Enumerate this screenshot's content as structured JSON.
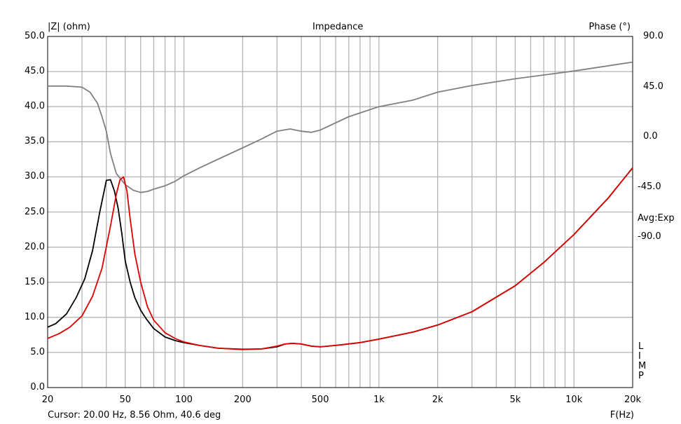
{
  "chart_data": {
    "type": "line",
    "title": "Impedance",
    "ylabel": "|Z| (ohm)",
    "y2label": "Phase (°)",
    "xlabel": "F(Hz)",
    "xscale": "log",
    "xlim": [
      20,
      20000
    ],
    "ylim": [
      0,
      50
    ],
    "y2lim": [
      -225,
      90
    ],
    "grid": true,
    "x_ticks": [
      20,
      50,
      100,
      200,
      500,
      1000,
      2000,
      5000,
      10000,
      20000
    ],
    "x_tick_labels": [
      "20",
      "50",
      "100",
      "200",
      "500",
      "1k",
      "2k",
      "5k",
      "10k",
      "20k"
    ],
    "y_ticks": [
      0,
      5,
      10,
      15,
      20,
      25,
      30,
      35,
      40,
      45,
      50
    ],
    "y_tick_labels": [
      "0.0",
      "5.0",
      "10.0",
      "15.0",
      "20.0",
      "25.0",
      "30.0",
      "35.0",
      "40.0",
      "45.0",
      "50.0"
    ],
    "y2_ticks": [
      90,
      45,
      0,
      -45,
      -90
    ],
    "y2_tick_labels": [
      "90.0",
      "45.0",
      "0.0",
      "-45.0",
      "-90.0"
    ],
    "side_label": "Avg:Exp",
    "corner_letters": [
      "L",
      "I",
      "M",
      "P"
    ],
    "cursor_text": "Cursor: 20.00 Hz, 8.56 Ohm, 40.6 deg",
    "series": [
      {
        "color": "#000000",
        "axis": "left",
        "x": [
          20,
          22,
          25,
          28,
          31,
          34,
          37,
          40,
          42,
          44,
          46,
          48,
          50,
          53,
          56,
          60,
          64,
          70,
          80,
          90,
          100,
          120,
          150,
          200,
          250,
          300,
          330,
          360,
          400,
          450,
          500,
          600,
          800,
          1000,
          1500,
          2000,
          3000,
          5000,
          7000,
          10000,
          15000,
          20000
        ],
        "values": [
          8.6,
          9.1,
          10.5,
          12.8,
          15.5,
          19.5,
          25.0,
          29.5,
          29.6,
          28.0,
          25.5,
          22.0,
          18.0,
          15.0,
          12.8,
          11.0,
          9.8,
          8.4,
          7.2,
          6.7,
          6.4,
          6.0,
          5.6,
          5.45,
          5.5,
          5.8,
          6.2,
          6.3,
          6.2,
          5.9,
          5.8,
          6.0,
          6.4,
          6.9,
          7.9,
          8.9,
          10.8,
          14.5,
          17.8,
          21.8,
          27.0,
          31.3
        ]
      },
      {
        "color": "#e00000",
        "axis": "left",
        "x": [
          20,
          23,
          26,
          30,
          34,
          38,
          42,
          45,
          47,
          49,
          51,
          53,
          56,
          60,
          65,
          70,
          80,
          90,
          100,
          120,
          150,
          200,
          250,
          300,
          330,
          360,
          400,
          450,
          500,
          600,
          800,
          1000,
          1500,
          2000,
          3000,
          5000,
          7000,
          10000,
          15000,
          20000
        ],
        "values": [
          7.0,
          7.7,
          8.6,
          10.2,
          13.0,
          17.0,
          23.0,
          27.5,
          29.6,
          30.0,
          28.0,
          24.0,
          19.0,
          15.0,
          11.5,
          9.6,
          7.8,
          7.0,
          6.5,
          6.0,
          5.6,
          5.4,
          5.5,
          5.9,
          6.2,
          6.3,
          6.2,
          5.9,
          5.8,
          6.0,
          6.4,
          6.9,
          7.9,
          8.9,
          10.8,
          14.5,
          17.8,
          21.8,
          27.0,
          31.3
        ]
      },
      {
        "color": "#808080",
        "axis": "right",
        "x": [
          20,
          25,
          30,
          33,
          36,
          38,
          40,
          42,
          45,
          50,
          55,
          60,
          65,
          70,
          80,
          90,
          100,
          120,
          150,
          200,
          250,
          300,
          350,
          400,
          450,
          500,
          700,
          1000,
          1500,
          2000,
          3000,
          5000,
          10000,
          20000
        ],
        "values": [
          45.5,
          45.5,
          44.5,
          40,
          30,
          18,
          5,
          -15,
          -33,
          -43,
          -48,
          -50,
          -49,
          -47,
          -44,
          -40,
          -35,
          -28,
          -20,
          -10,
          -2,
          5,
          7,
          5,
          4,
          6,
          18,
          27,
          33,
          40,
          46,
          52,
          59,
          67
        ]
      }
    ]
  }
}
